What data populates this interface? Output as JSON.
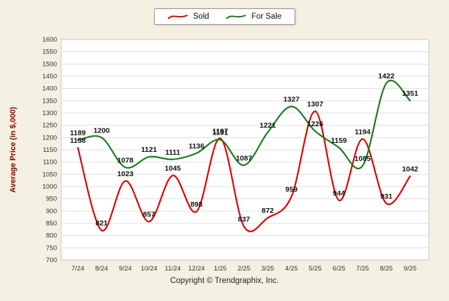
{
  "legend": {
    "items": [
      {
        "label": "Sold",
        "color": "#e10000"
      },
      {
        "label": "For Sale",
        "color": "#1a7a1a"
      }
    ]
  },
  "ylabel": "Average Price (in $,000)",
  "footer": "Copyright © Trendgraphix, Inc.",
  "chart_data": {
    "type": "line",
    "title": "",
    "xlabel": "",
    "ylabel": "Average Price (in $,000)",
    "categories": [
      "7/24",
      "8/24",
      "9/24",
      "10/24",
      "11/24",
      "12/24",
      "1/25",
      "2/25",
      "3/25",
      "4/25",
      "5/25",
      "6/25",
      "7/25",
      "8/25",
      "9/25"
    ],
    "series": [
      {
        "name": "Sold",
        "color": "#e10000",
        "values": [
          1158,
          821,
          1023,
          857,
          1045,
          898,
          1197,
          837,
          872,
          959,
          1307,
          944,
          1194,
          931,
          1042
        ]
      },
      {
        "name": "For Sale",
        "color": "#1a7a1a",
        "values": [
          1189,
          1200,
          1078,
          1121,
          1111,
          1136,
          1191,
          1087,
          1221,
          1327,
          1226,
          1159,
          1085,
          1422,
          1351
        ]
      }
    ],
    "ylim": [
      700,
      1600
    ],
    "ytick_step": 50,
    "grid": true,
    "legend_position": "top"
  }
}
